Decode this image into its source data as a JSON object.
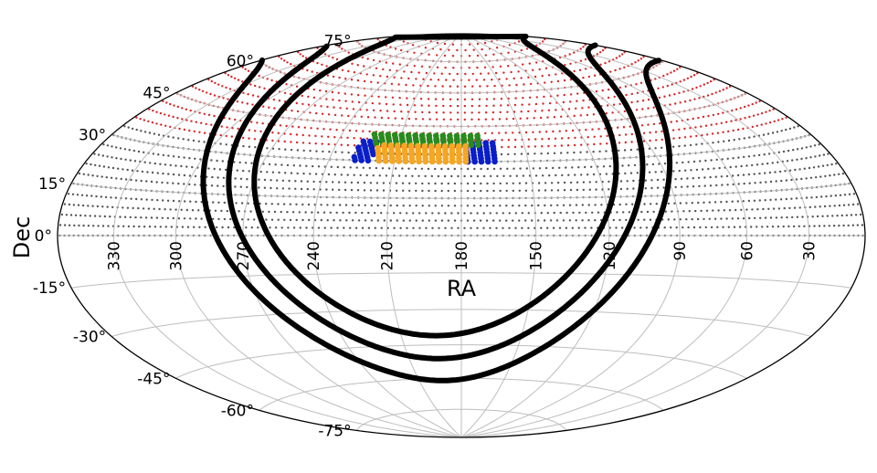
{
  "chart_data": {
    "type": "scatter",
    "projection": "hammer-aitoff",
    "xlabel": "RA",
    "ylabel": "Dec",
    "ra_tick_labels": [
      "330",
      "300",
      "270",
      "240",
      "210",
      "180",
      "150",
      "120",
      "90",
      "60",
      "30"
    ],
    "dec_tick_labels": [
      "75°",
      "60°",
      "45°",
      "30°",
      "15°",
      "0°",
      "-15°",
      "-30°",
      "-45°",
      "-60°",
      "-75°"
    ],
    "grid": true,
    "ra_range": [
      0,
      360
    ],
    "dec_range": [
      -90,
      90
    ],
    "background_grid": {
      "dec_range_grey": [
        0,
        33
      ],
      "dec_range_red": [
        33,
        90
      ],
      "dec_step": 3,
      "colors": {
        "grey": "#555555",
        "red": "#d62728"
      }
    },
    "regions": [
      {
        "color": "#1f77b4",
        "ra_range": [
          165,
          229
        ],
        "dec_range": [
          30,
          38
        ],
        "pattern": "outer",
        "hex": "#0a1fc8"
      },
      {
        "color": "#f5a623",
        "ra_range": [
          178,
          220
        ],
        "dec_range": [
          30,
          37
        ],
        "hex": "#f5a623"
      },
      {
        "color": "#228b22",
        "ra_range": [
          172,
          224
        ],
        "dec_range": [
          37,
          42
        ],
        "hex": "#2a8a1e"
      }
    ],
    "curves": [
      {
        "pole_ra": 192,
        "pole_dec": 29,
        "radius_deg": 90
      },
      {
        "pole_ra": 192,
        "pole_dec": 29,
        "radius_deg": 80
      },
      {
        "pole_ra": 192,
        "pole_dec": 29,
        "radius_deg": 70
      }
    ]
  }
}
